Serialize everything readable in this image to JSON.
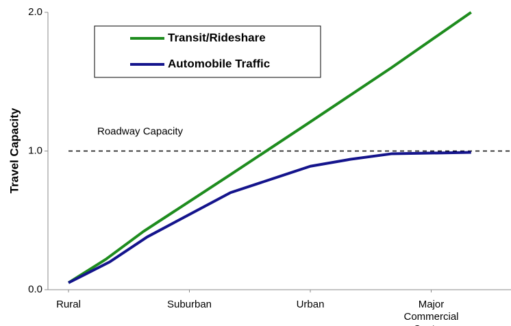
{
  "chart_data": {
    "type": "line",
    "y_label": "Travel Capacity",
    "x": [],
    "categories": [
      "Rural",
      "Suburban",
      "Urban",
      "Major Commercial Centers"
    ],
    "xticks": [
      {
        "value": 0,
        "label": "Rural"
      },
      {
        "value": 1,
        "label": "Suburban"
      },
      {
        "value": 2,
        "label": "Urban"
      },
      {
        "value": 3,
        "label": "Major Commercial Centers"
      }
    ],
    "xlim": [
      -0.17,
      3.66
    ],
    "ylim": [
      0,
      2.0
    ],
    "yticks": [
      {
        "value": 0,
        "label": "0.0"
      },
      {
        "value": 1,
        "label": "1.0"
      },
      {
        "value": 2,
        "label": "2.0"
      }
    ],
    "series": [
      {
        "name": "Transit/Rideshare",
        "color": "#1e8c1e",
        "x": [
          0,
          0.31,
          0.62,
          1.34,
          2,
          2.67,
          3.33
        ],
        "values": [
          0.05,
          0.22,
          0.42,
          0.83,
          1.21,
          1.6,
          2.0
        ]
      },
      {
        "name": "Automobile Traffic",
        "color": "#14148c",
        "x": [
          0,
          0.34,
          0.65,
          1.34,
          2,
          2.33,
          2.67,
          3.33
        ],
        "values": [
          0.05,
          0.2,
          0.38,
          0.7,
          0.89,
          0.94,
          0.98,
          0.99
        ]
      }
    ],
    "reference_line": {
      "value": 1.0,
      "label": "Roadway Capacity"
    },
    "legend": "upper left"
  }
}
